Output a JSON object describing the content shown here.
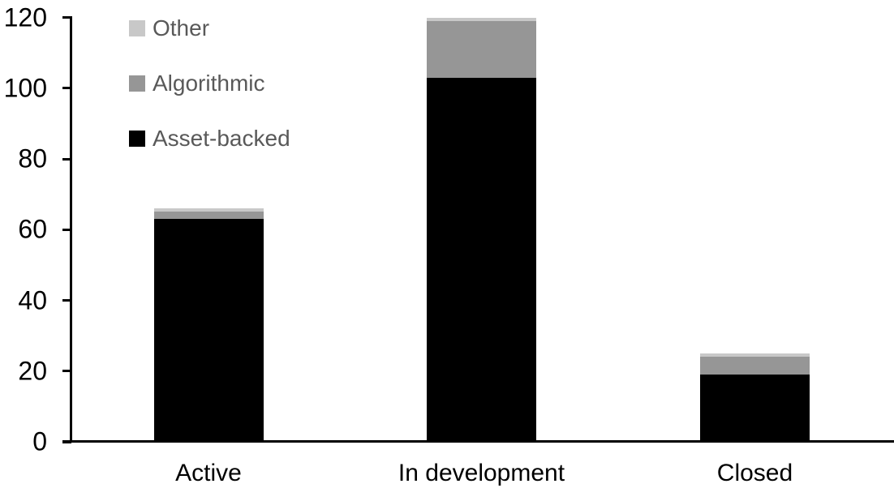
{
  "chart_data": {
    "type": "bar",
    "stacked": true,
    "title": "",
    "xlabel": "",
    "ylabel": "",
    "categories": [
      "Active",
      "In development",
      "Closed"
    ],
    "series": [
      {
        "name": "Asset-backed",
        "color": "#000000",
        "values": [
          63,
          103,
          19
        ]
      },
      {
        "name": "Algorithmic",
        "color": "#969696",
        "values": [
          2,
          16,
          5
        ]
      },
      {
        "name": "Other",
        "color": "#c8c8c8",
        "values": [
          1,
          1,
          1
        ]
      }
    ],
    "totals": [
      66,
      120,
      25
    ],
    "ylim": [
      0,
      120
    ],
    "yticks": [
      0,
      20,
      40,
      60,
      80,
      100,
      120
    ],
    "grid": false,
    "legend": {
      "position": "top-left",
      "entries": [
        "Other",
        "Algorithmic",
        "Asset-backed"
      ],
      "text_color": "#595959"
    },
    "axis_color": "#000000",
    "background_color": "#ffffff"
  }
}
